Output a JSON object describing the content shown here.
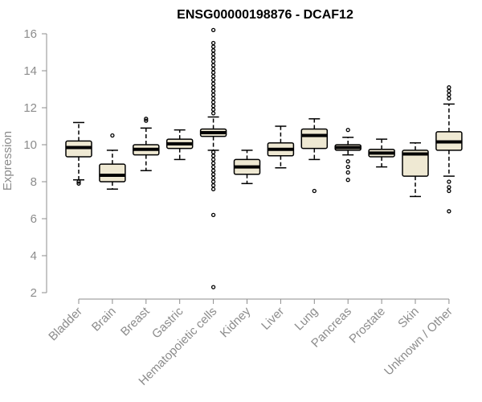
{
  "chart_data": {
    "type": "boxplot",
    "title": "ENSG00000198876 - DCAF12",
    "ylabel": "Expression",
    "xlabel": "",
    "ylim": [
      2,
      16
    ],
    "yticks": [
      2,
      4,
      6,
      8,
      10,
      12,
      14,
      16
    ],
    "box_fill": "#efe9d3",
    "box_stroke": "#000000",
    "axis_color": "#8c8c8c",
    "categories": [
      "Bladder",
      "Brain",
      "Breast",
      "Gastric",
      "Hematopoietic cells",
      "Kidney",
      "Liver",
      "Lung",
      "Pancreas",
      "Prostate",
      "Skin",
      "Unknown / Other"
    ],
    "boxes": [
      {
        "category": "Bladder",
        "whisker_low": 8.1,
        "q1": 9.35,
        "median": 9.85,
        "q3": 10.2,
        "whisker_high": 11.2,
        "outliers": [
          7.9,
          8.0
        ]
      },
      {
        "category": "Brain",
        "whisker_low": 7.6,
        "q1": 8.0,
        "median": 8.35,
        "q3": 8.95,
        "whisker_high": 9.7,
        "outliers": [
          10.5
        ]
      },
      {
        "category": "Breast",
        "whisker_low": 8.6,
        "q1": 9.45,
        "median": 9.75,
        "q3": 10.0,
        "whisker_high": 10.9,
        "outliers": [
          11.3,
          11.4
        ]
      },
      {
        "category": "Gastric",
        "whisker_low": 9.2,
        "q1": 9.8,
        "median": 10.05,
        "q3": 10.3,
        "whisker_high": 10.8,
        "outliers": []
      },
      {
        "category": "Hematopoietic cells",
        "whisker_low": 9.7,
        "q1": 10.45,
        "median": 10.65,
        "q3": 10.85,
        "whisker_high": 11.5,
        "outliers": [
          16.2,
          15.5,
          15.3,
          15.1,
          14.9,
          14.7,
          14.5,
          14.3,
          14.1,
          13.9,
          13.7,
          13.5,
          13.3,
          13.1,
          12.9,
          12.7,
          12.5,
          12.3,
          12.1,
          11.9,
          11.7,
          9.6,
          9.4,
          9.2,
          9.0,
          8.8,
          8.6,
          8.4,
          8.2,
          8.0,
          7.8,
          7.6,
          6.2,
          2.3
        ]
      },
      {
        "category": "Kidney",
        "whisker_low": 7.9,
        "q1": 8.4,
        "median": 8.8,
        "q3": 9.2,
        "whisker_high": 9.7,
        "outliers": []
      },
      {
        "category": "Liver",
        "whisker_low": 8.75,
        "q1": 9.4,
        "median": 9.75,
        "q3": 10.1,
        "whisker_high": 11.0,
        "outliers": []
      },
      {
        "category": "Lung",
        "whisker_low": 9.2,
        "q1": 9.8,
        "median": 10.5,
        "q3": 10.85,
        "whisker_high": 11.4,
        "outliers": [
          7.5
        ]
      },
      {
        "category": "Pancreas",
        "whisker_low": 9.45,
        "q1": 9.7,
        "median": 9.85,
        "q3": 10.0,
        "whisker_high": 10.4,
        "outliers": [
          10.8,
          9.1,
          8.8,
          8.5,
          8.1
        ]
      },
      {
        "category": "Prostate",
        "whisker_low": 8.8,
        "q1": 9.35,
        "median": 9.55,
        "q3": 9.75,
        "whisker_high": 10.3,
        "outliers": []
      },
      {
        "category": "Skin",
        "whisker_low": 7.2,
        "q1": 8.3,
        "median": 9.5,
        "q3": 9.7,
        "whisker_high": 10.1,
        "outliers": []
      },
      {
        "category": "Unknown / Other",
        "whisker_low": 8.3,
        "q1": 9.7,
        "median": 10.15,
        "q3": 10.7,
        "whisker_high": 12.2,
        "outliers": [
          13.1,
          12.9,
          12.7,
          12.5,
          8.0,
          7.7,
          7.5,
          6.4
        ]
      }
    ]
  }
}
